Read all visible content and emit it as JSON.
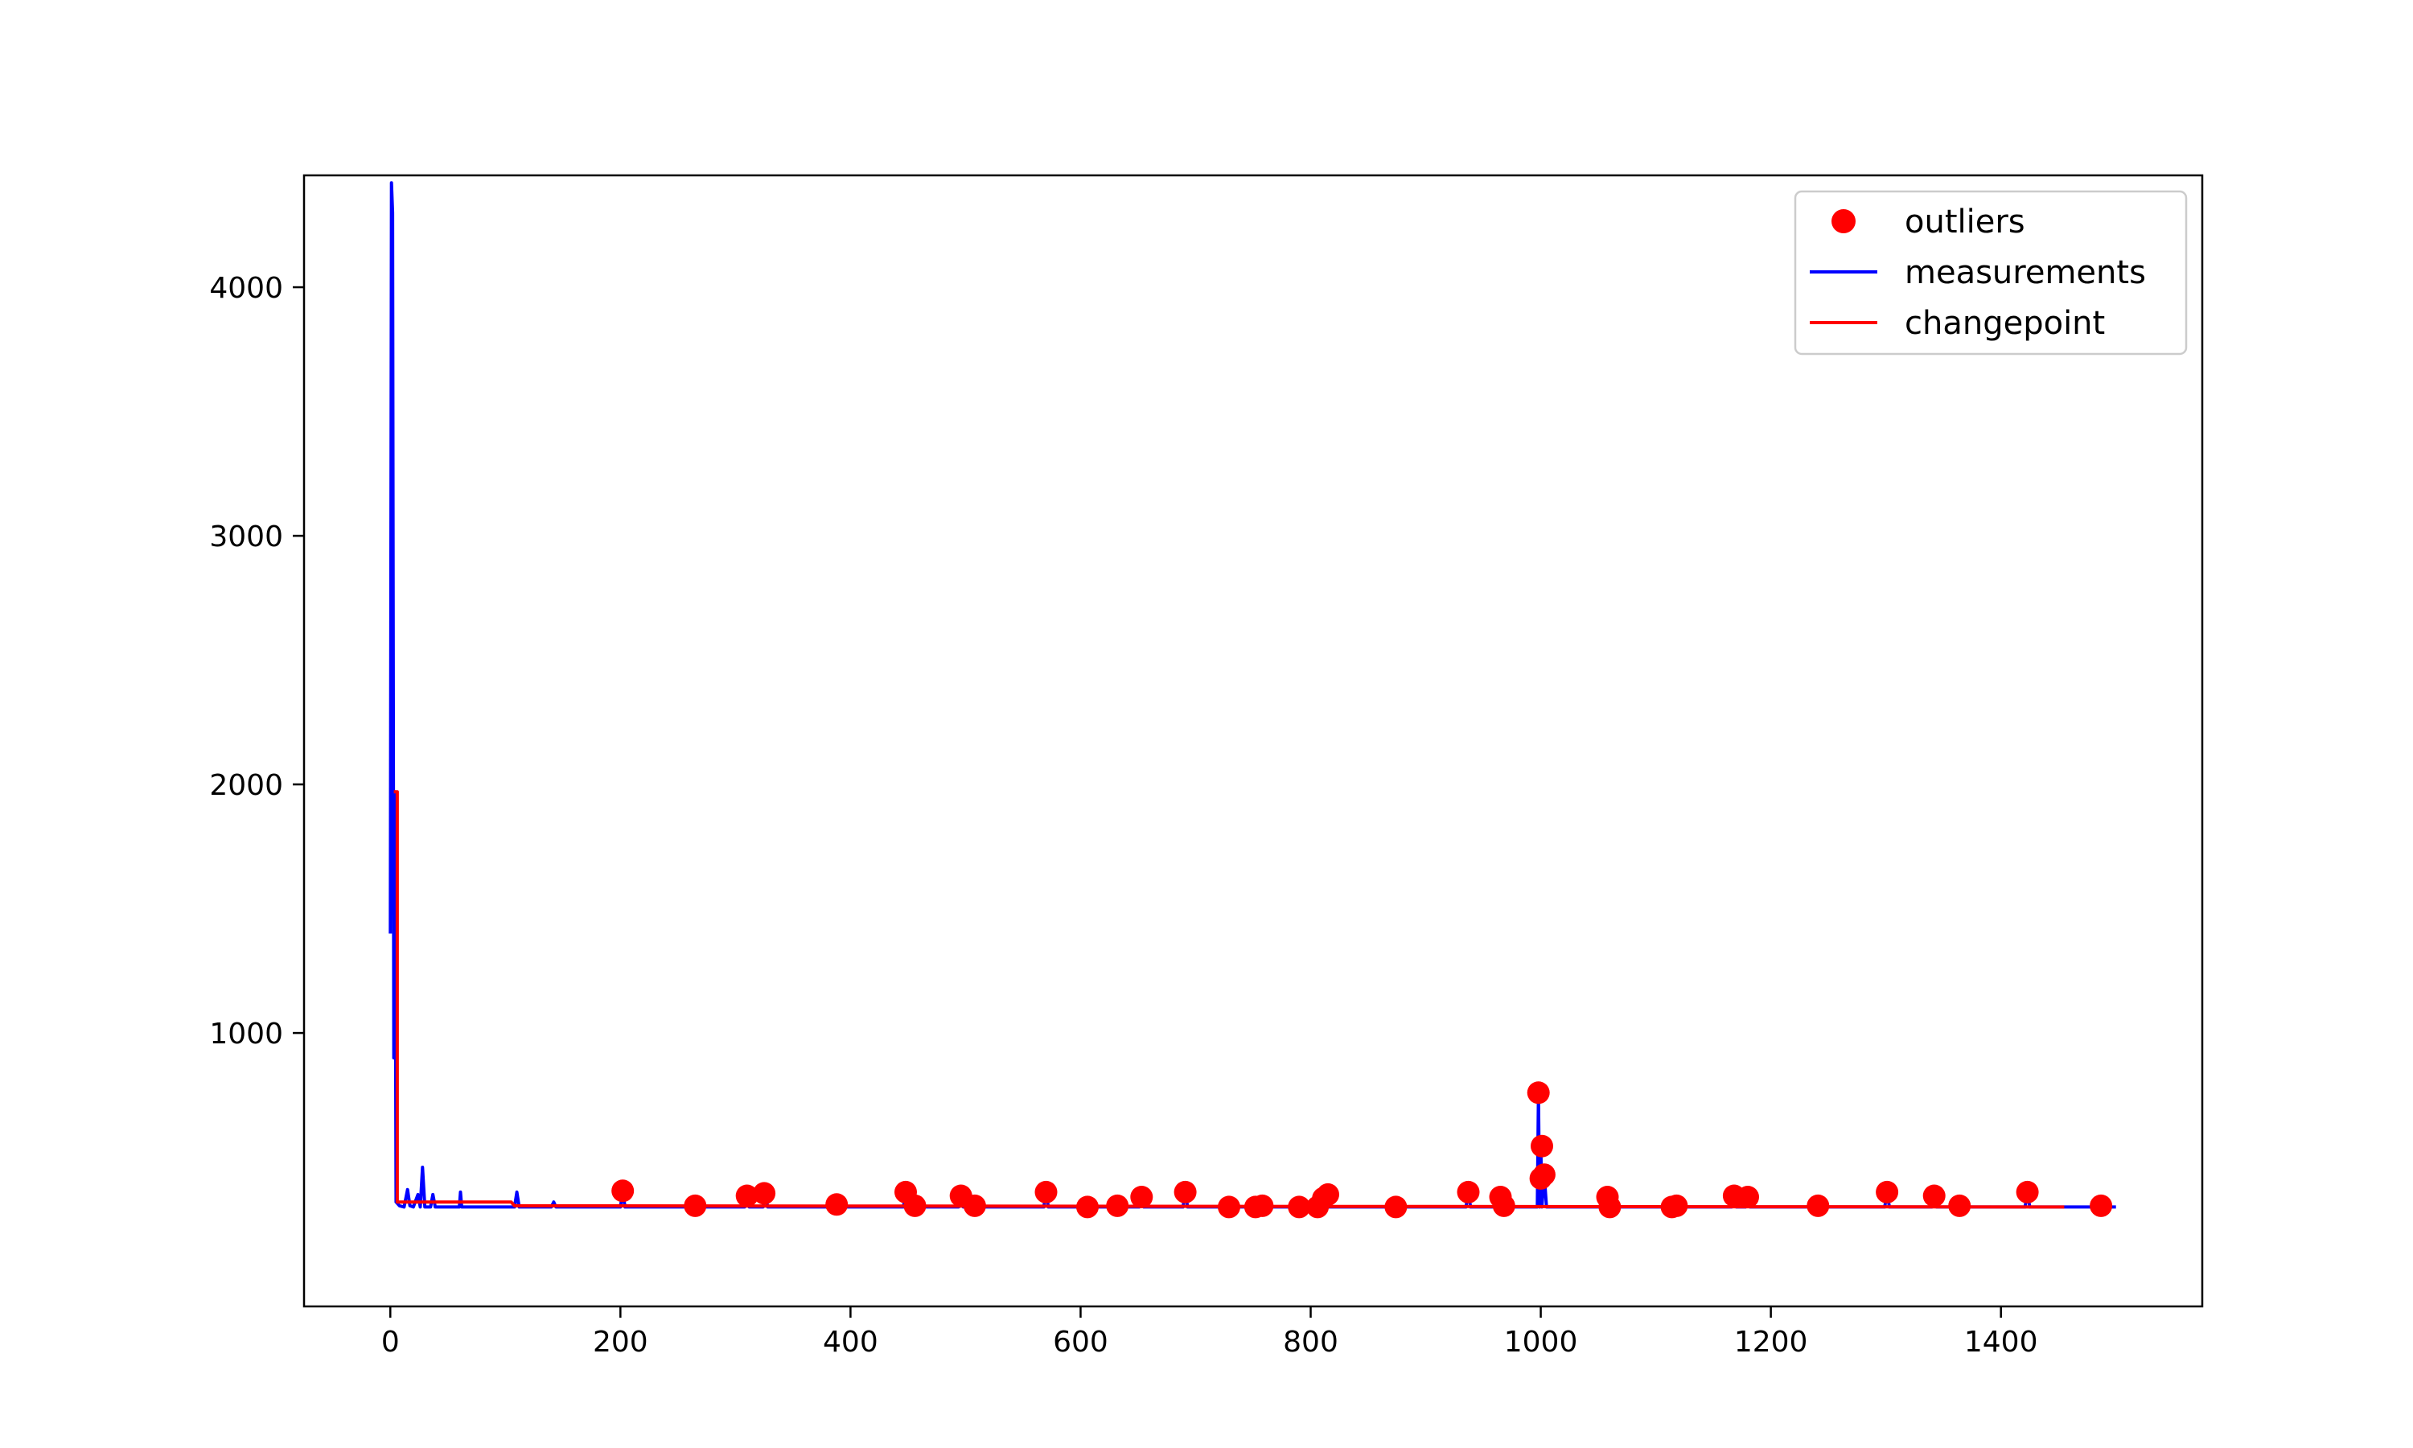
{
  "chart_data": {
    "type": "line",
    "title": "",
    "xlabel": "",
    "ylabel": "",
    "xlim": [
      -75,
      1575
    ],
    "ylim": [
      -100,
      4450
    ],
    "x_ticks": [
      0,
      200,
      400,
      600,
      800,
      1000,
      1200,
      1400
    ],
    "y_ticks": [
      1000,
      2000,
      3000,
      4000
    ],
    "x_tick_labels": [
      "0",
      "200",
      "400",
      "600",
      "800",
      "1000",
      "1200",
      "1400"
    ],
    "y_tick_labels": [
      "1000",
      "2000",
      "3000",
      "4000"
    ],
    "grid": false,
    "legend_position": "top-right",
    "legend": [
      {
        "label": "outliers",
        "kind": "marker",
        "color": "#ff0000"
      },
      {
        "label": "measurements",
        "kind": "line",
        "color": "#0000ff"
      },
      {
        "label": "changepoint",
        "kind": "line",
        "color": "#ff0000"
      }
    ],
    "series": [
      {
        "name": "measurements",
        "kind": "line",
        "color": "#0000ff",
        "points": [
          [
            0,
            1400
          ],
          [
            1,
            4420
          ],
          [
            2,
            4300
          ],
          [
            3,
            900
          ],
          [
            4,
            1970
          ],
          [
            5,
            320
          ],
          [
            8,
            305
          ],
          [
            12,
            300
          ],
          [
            15,
            370
          ],
          [
            17,
            305
          ],
          [
            20,
            300
          ],
          [
            24,
            350
          ],
          [
            26,
            300
          ],
          [
            28,
            460
          ],
          [
            30,
            300
          ],
          [
            35,
            300
          ],
          [
            37,
            350
          ],
          [
            39,
            300
          ],
          [
            45,
            300
          ],
          [
            60,
            300
          ],
          [
            61,
            360
          ],
          [
            62,
            300
          ],
          [
            108,
            300
          ],
          [
            110,
            360
          ],
          [
            112,
            300
          ],
          [
            140,
            300
          ],
          [
            142,
            320
          ],
          [
            144,
            300
          ],
          [
            200,
            300
          ],
          [
            202,
            360
          ],
          [
            204,
            300
          ],
          [
            308,
            300
          ],
          [
            310,
            345
          ],
          [
            312,
            300
          ],
          [
            324,
            300
          ],
          [
            326,
            350
          ],
          [
            328,
            300
          ],
          [
            446,
            300
          ],
          [
            448,
            360
          ],
          [
            450,
            300
          ],
          [
            494,
            300
          ],
          [
            496,
            345
          ],
          [
            498,
            300
          ],
          [
            568,
            300
          ],
          [
            570,
            360
          ],
          [
            572,
            300
          ],
          [
            651,
            300
          ],
          [
            653,
            340
          ],
          [
            655,
            300
          ],
          [
            689,
            300
          ],
          [
            691,
            360
          ],
          [
            693,
            300
          ],
          [
            811,
            300
          ],
          [
            813,
            350
          ],
          [
            815,
            300
          ],
          [
            935,
            300
          ],
          [
            937,
            360
          ],
          [
            939,
            300
          ],
          [
            963,
            300
          ],
          [
            965,
            340
          ],
          [
            967,
            300
          ],
          [
            997,
            300
          ],
          [
            998,
            760
          ],
          [
            999,
            300
          ],
          [
            1000,
            550
          ],
          [
            1001,
            300
          ],
          [
            1003,
            430
          ],
          [
            1005,
            300
          ],
          [
            1056,
            300
          ],
          [
            1058,
            340
          ],
          [
            1060,
            300
          ],
          [
            1166,
            300
          ],
          [
            1168,
            345
          ],
          [
            1170,
            300
          ],
          [
            1178,
            300
          ],
          [
            1180,
            340
          ],
          [
            1182,
            300
          ],
          [
            1299,
            300
          ],
          [
            1301,
            360
          ],
          [
            1303,
            300
          ],
          [
            1340,
            300
          ],
          [
            1342,
            345
          ],
          [
            1344,
            300
          ],
          [
            1421,
            300
          ],
          [
            1423,
            360
          ],
          [
            1425,
            300
          ],
          [
            1500,
            300
          ]
        ]
      },
      {
        "name": "changepoint",
        "kind": "line",
        "color": "#ff0000",
        "points": [
          [
            3,
            1970
          ],
          [
            6,
            1970
          ],
          [
            6,
            320
          ],
          [
            105,
            320
          ],
          [
            108,
            305
          ],
          [
            110,
            305
          ],
          [
            1450,
            300
          ],
          [
            1455,
            300
          ]
        ]
      },
      {
        "name": "outliers",
        "kind": "scatter",
        "color": "#ff0000",
        "points": [
          [
            202,
            365
          ],
          [
            265,
            305
          ],
          [
            310,
            345
          ],
          [
            325,
            355
          ],
          [
            388,
            310
          ],
          [
            448,
            360
          ],
          [
            456,
            305
          ],
          [
            496,
            345
          ],
          [
            508,
            305
          ],
          [
            570,
            360
          ],
          [
            606,
            300
          ],
          [
            632,
            305
          ],
          [
            653,
            340
          ],
          [
            691,
            360
          ],
          [
            729,
            300
          ],
          [
            752,
            300
          ],
          [
            758,
            305
          ],
          [
            790,
            300
          ],
          [
            806,
            300
          ],
          [
            811,
            335
          ],
          [
            815,
            350
          ],
          [
            874,
            300
          ],
          [
            937,
            360
          ],
          [
            965,
            340
          ],
          [
            968,
            305
          ],
          [
            998,
            760
          ],
          [
            1000,
            415
          ],
          [
            1001,
            545
          ],
          [
            1003,
            430
          ],
          [
            1058,
            340
          ],
          [
            1060,
            300
          ],
          [
            1114,
            300
          ],
          [
            1118,
            305
          ],
          [
            1168,
            345
          ],
          [
            1180,
            340
          ],
          [
            1241,
            305
          ],
          [
            1301,
            360
          ],
          [
            1342,
            345
          ],
          [
            1364,
            305
          ],
          [
            1423,
            360
          ],
          [
            1487,
            305
          ]
        ]
      }
    ]
  }
}
